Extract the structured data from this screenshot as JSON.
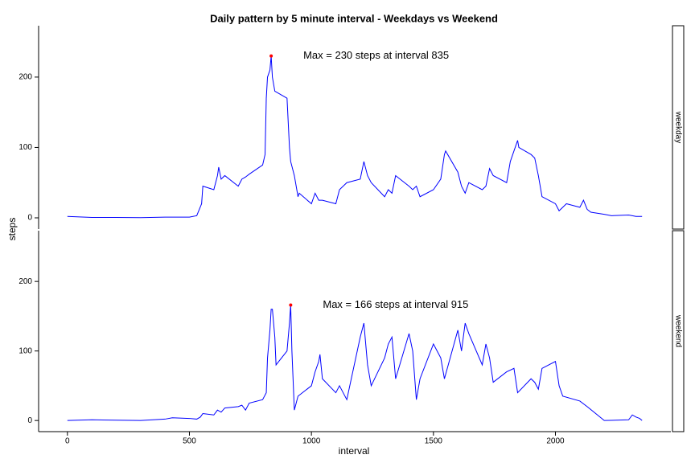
{
  "chart_data": {
    "type": "line",
    "title": "Daily pattern by 5 minute interval - Weekdays vs Weekend",
    "xlabel": "interval",
    "ylabel": "steps",
    "xlim": [
      -118,
      2473
    ],
    "ylim": [
      -16,
      273
    ],
    "xticks": [
      0,
      500,
      1000,
      1500,
      2000
    ],
    "yticks": [
      0,
      100,
      200
    ],
    "panels": [
      {
        "strip": "weekday",
        "color": "#0000ff",
        "max_color": "#ff0000",
        "annotation": "Max = 230 steps at interval 835",
        "max_point": {
          "x": 835,
          "y": 230
        },
        "x": [
          0,
          100,
          200,
          300,
          400,
          500,
          530,
          550,
          555,
          600,
          615,
          620,
          630,
          645,
          700,
          715,
          730,
          745,
          800,
          810,
          815,
          820,
          830,
          835,
          840,
          845,
          850,
          900,
          910,
          915,
          930,
          945,
          950,
          1000,
          1015,
          1030,
          1045,
          1100,
          1115,
          1130,
          1145,
          1200,
          1215,
          1230,
          1245,
          1300,
          1315,
          1330,
          1345,
          1400,
          1415,
          1430,
          1445,
          1500,
          1530,
          1545,
          1550,
          1600,
          1615,
          1630,
          1645,
          1700,
          1715,
          1730,
          1745,
          1800,
          1815,
          1830,
          1845,
          1850,
          1900,
          1915,
          1930,
          1945,
          2000,
          2015,
          2030,
          2045,
          2100,
          2115,
          2130,
          2145,
          2200,
          2230,
          2300,
          2330,
          2355
        ],
        "values": [
          2,
          0.5,
          0.5,
          0.3,
          1,
          1,
          3,
          20,
          45,
          40,
          60,
          72,
          55,
          60,
          45,
          55,
          58,
          62,
          75,
          90,
          170,
          200,
          210,
          230,
          200,
          190,
          180,
          170,
          100,
          80,
          60,
          30,
          35,
          20,
          35,
          25,
          25,
          20,
          40,
          45,
          50,
          55,
          80,
          60,
          50,
          30,
          40,
          35,
          60,
          45,
          40,
          45,
          30,
          40,
          55,
          90,
          95,
          65,
          45,
          35,
          50,
          40,
          45,
          70,
          60,
          50,
          80,
          95,
          110,
          100,
          90,
          85,
          60,
          30,
          20,
          10,
          15,
          20,
          15,
          25,
          12,
          8,
          5,
          3,
          4,
          2,
          2
        ]
      },
      {
        "strip": "weekend",
        "color": "#0000ff",
        "max_color": "#ff0000",
        "annotation": "Max = 166 steps at interval 915",
        "max_point": {
          "x": 915,
          "y": 166
        },
        "x": [
          0,
          100,
          200,
          300,
          400,
          430,
          500,
          530,
          545,
          555,
          600,
          615,
          630,
          645,
          700,
          715,
          730,
          745,
          800,
          815,
          820,
          830,
          835,
          840,
          845,
          850,
          855,
          900,
          910,
          915,
          920,
          930,
          945,
          1000,
          1015,
          1030,
          1035,
          1045,
          1100,
          1115,
          1130,
          1145,
          1200,
          1215,
          1230,
          1245,
          1300,
          1315,
          1330,
          1345,
          1400,
          1415,
          1430,
          1445,
          1500,
          1530,
          1545,
          1600,
          1615,
          1630,
          1645,
          1700,
          1715,
          1730,
          1745,
          1800,
          1830,
          1845,
          1900,
          1915,
          1930,
          1945,
          2000,
          2015,
          2030,
          2100,
          2130,
          2200,
          2300,
          2315,
          2330,
          2345,
          2355
        ],
        "values": [
          0,
          1,
          0.5,
          0,
          2,
          4,
          3,
          2,
          5,
          10,
          8,
          15,
          12,
          18,
          20,
          22,
          15,
          25,
          30,
          40,
          90,
          130,
          160,
          160,
          140,
          120,
          80,
          100,
          140,
          166,
          100,
          15,
          35,
          50,
          70,
          85,
          95,
          60,
          40,
          50,
          40,
          30,
          120,
          140,
          80,
          50,
          90,
          110,
          120,
          60,
          125,
          100,
          30,
          60,
          110,
          90,
          60,
          130,
          100,
          140,
          125,
          80,
          110,
          90,
          55,
          70,
          75,
          40,
          60,
          55,
          45,
          75,
          85,
          50,
          35,
          28,
          20,
          0,
          1,
          8,
          5,
          3,
          0
        ]
      }
    ]
  }
}
